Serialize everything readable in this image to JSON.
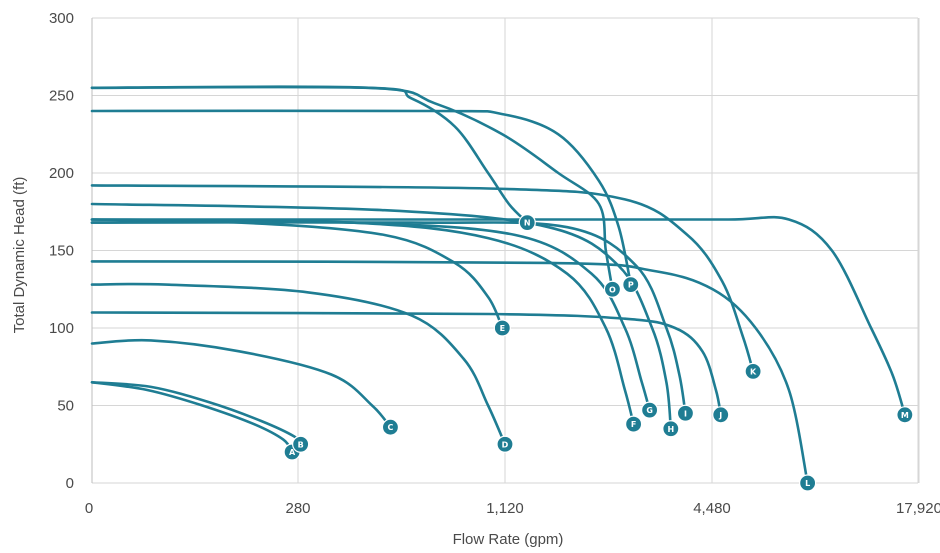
{
  "chart_data": {
    "type": "line",
    "xlabel": "Flow Rate (gpm)",
    "ylabel": "Total Dynamic Head (ft)",
    "x_scale": "log",
    "x_ticks": [
      "0",
      "280",
      "1,120",
      "4,480",
      "17,920"
    ],
    "y_ticks": [
      "0",
      "50",
      "100",
      "150",
      "200",
      "250",
      "300"
    ],
    "ylim": [
      0,
      300
    ],
    "grid": true,
    "colors": {
      "curve": "#1f7d93",
      "grid": "#d6d6d6",
      "text": "#4a4a4a"
    },
    "series": [
      {
        "name": "A",
        "points": [
          [
            0,
            65
          ],
          [
            75,
            60
          ],
          [
            150,
            50
          ],
          [
            220,
            38
          ],
          [
            260,
            28
          ],
          [
            272,
            20
          ]
        ]
      },
      {
        "name": "B",
        "points": [
          [
            0,
            65
          ],
          [
            80,
            62
          ],
          [
            160,
            52
          ],
          [
            230,
            40
          ],
          [
            275,
            30
          ],
          [
            285,
            25
          ]
        ]
      },
      {
        "name": "C",
        "points": [
          [
            0,
            90
          ],
          [
            80,
            92
          ],
          [
            200,
            85
          ],
          [
            350,
            70
          ],
          [
            460,
            50
          ],
          [
            520,
            36
          ]
        ]
      },
      {
        "name": "D",
        "points": [
          [
            0,
            128
          ],
          [
            100,
            128
          ],
          [
            300,
            123
          ],
          [
            600,
            108
          ],
          [
            850,
            80
          ],
          [
            1000,
            50
          ],
          [
            1120,
            25
          ]
        ]
      },
      {
        "name": "E",
        "points": [
          [
            0,
            168
          ],
          [
            200,
            168
          ],
          [
            500,
            160
          ],
          [
            800,
            142
          ],
          [
            1000,
            120
          ],
          [
            1100,
            100
          ]
        ]
      },
      {
        "name": "F",
        "points": [
          [
            0,
            170
          ],
          [
            400,
            168
          ],
          [
            1000,
            158
          ],
          [
            1700,
            135
          ],
          [
            2200,
            100
          ],
          [
            2500,
            60
          ],
          [
            2650,
            38
          ]
        ]
      },
      {
        "name": "G",
        "points": [
          [
            0,
            170
          ],
          [
            400,
            168
          ],
          [
            1200,
            160
          ],
          [
            2000,
            135
          ],
          [
            2500,
            100
          ],
          [
            2800,
            65
          ],
          [
            2950,
            47
          ]
        ]
      },
      {
        "name": "H",
        "points": [
          [
            0,
            180
          ],
          [
            500,
            176
          ],
          [
            1500,
            165
          ],
          [
            2400,
            140
          ],
          [
            3000,
            100
          ],
          [
            3300,
            65
          ],
          [
            3400,
            35
          ]
        ]
      },
      {
        "name": "I",
        "points": [
          [
            0,
            168
          ],
          [
            600,
            168
          ],
          [
            1700,
            165
          ],
          [
            2700,
            140
          ],
          [
            3300,
            100
          ],
          [
            3600,
            70
          ],
          [
            3750,
            45
          ]
        ]
      },
      {
        "name": "J",
        "points": [
          [
            0,
            110
          ],
          [
            1000,
            109
          ],
          [
            2500,
            106
          ],
          [
            3500,
            100
          ],
          [
            4200,
            85
          ],
          [
            4600,
            60
          ],
          [
            4750,
            44
          ]
        ]
      },
      {
        "name": "K",
        "points": [
          [
            0,
            192
          ],
          [
            1000,
            190
          ],
          [
            2500,
            183
          ],
          [
            3800,
            160
          ],
          [
            4800,
            130
          ],
          [
            5500,
            95
          ],
          [
            5900,
            72
          ]
        ]
      },
      {
        "name": "L",
        "points": [
          [
            0,
            143
          ],
          [
            1500,
            142
          ],
          [
            3000,
            137
          ],
          [
            4500,
            125
          ],
          [
            6000,
            100
          ],
          [
            7500,
            60
          ],
          [
            8500,
            0
          ]
        ]
      },
      {
        "name": "M",
        "points": [
          [
            0,
            170
          ],
          [
            2000,
            170
          ],
          [
            5000,
            170
          ],
          [
            7500,
            170
          ],
          [
            10000,
            150
          ],
          [
            13000,
            100
          ],
          [
            15000,
            70
          ],
          [
            16300,
            44
          ]
        ]
      },
      {
        "name": "N",
        "points": [
          [
            0,
            255
          ],
          [
            450,
            255
          ],
          [
            600,
            248
          ],
          [
            800,
            230
          ],
          [
            1000,
            200
          ],
          [
            1150,
            180
          ],
          [
            1300,
            168
          ]
        ]
      },
      {
        "name": "O",
        "points": [
          [
            0,
            255
          ],
          [
            450,
            255
          ],
          [
            700,
            245
          ],
          [
            1100,
            225
          ],
          [
            1600,
            200
          ],
          [
            2100,
            180
          ],
          [
            2200,
            150
          ],
          [
            2300,
            125
          ]
        ]
      },
      {
        "name": "P",
        "points": [
          [
            0,
            240
          ],
          [
            700,
            240
          ],
          [
            1100,
            238
          ],
          [
            1600,
            225
          ],
          [
            2100,
            195
          ],
          [
            2400,
            165
          ],
          [
            2600,
            128
          ]
        ]
      }
    ]
  }
}
